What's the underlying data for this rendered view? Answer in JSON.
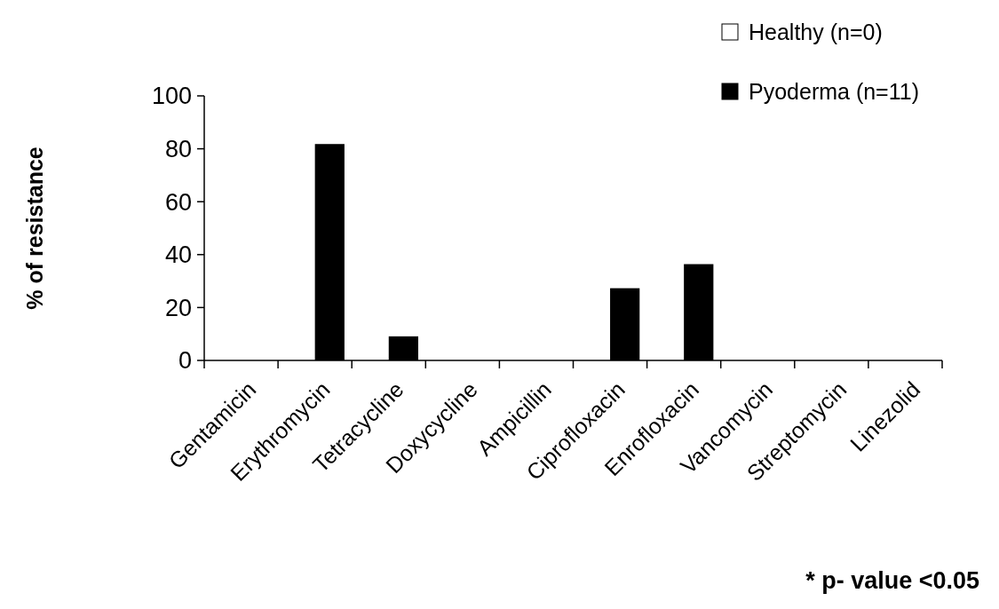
{
  "chart_data": {
    "type": "bar",
    "ylabel": "% of resistance",
    "categories": [
      "Gentamicin",
      "Erythromycin",
      "Tetracycline",
      "Doxycycline",
      "Ampicillin",
      "Ciprofloxacin",
      "Enrofloxacin",
      "Vancomycin",
      "Streptomycin",
      "Linezolid"
    ],
    "series": [
      {
        "name": "Healthy (n=0)",
        "color": "#ffffff",
        "values": [
          0,
          0,
          0,
          0,
          0,
          0,
          0,
          0,
          0,
          0
        ]
      },
      {
        "name": "Pyoderma (n=11)",
        "color": "#000000",
        "values": [
          0,
          81.8,
          9.1,
          0,
          0,
          27.3,
          36.4,
          0,
          0,
          0
        ]
      }
    ],
    "ylim": [
      0,
      100
    ],
    "yticks": [
      0,
      20,
      40,
      60,
      80,
      100
    ],
    "grid": false,
    "legend": "top right",
    "annotations": [
      "* p- value <0.05"
    ]
  }
}
